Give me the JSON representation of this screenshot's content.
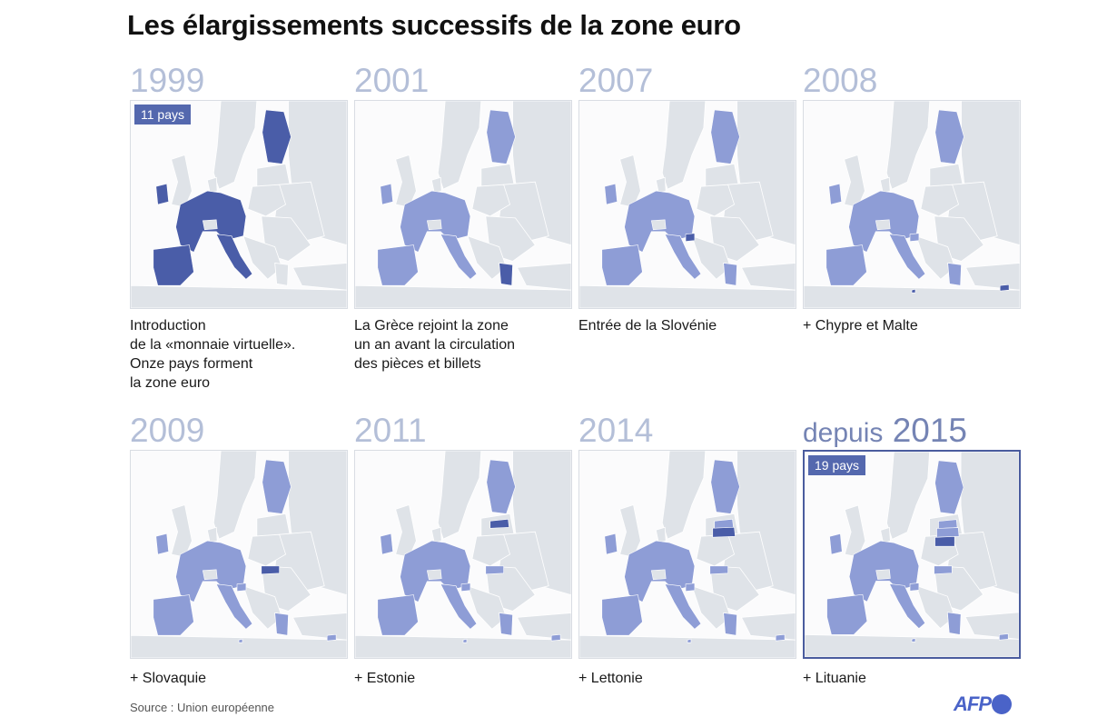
{
  "title": "Les élargissements successifs de la zone euro",
  "source": "Source : Union européenne",
  "logo_text": "AFP",
  "colors": {
    "base": "#dfe3e8",
    "sea": "#fbfbfc",
    "member": "#8e9dd6",
    "new_member": "#4a5da8",
    "year_light": "#b4bfd8",
    "year_dark": "#7584b4",
    "badge": "#5468ae"
  },
  "panels": [
    {
      "year": "1999",
      "badge": "11 pays",
      "caption": "Introduction\nde la «monnaie virtuelle».\nOnze pays forment\nla zone euro"
    },
    {
      "year": "2001",
      "caption": "La Grèce rejoint la zone\nun an avant la circulation\ndes pièces et billets"
    },
    {
      "year": "2007",
      "caption": "Entrée de la Slovénie"
    },
    {
      "year": "2008",
      "caption": "+ Chypre et Malte"
    },
    {
      "year": "2009",
      "caption": "+ Slovaquie"
    },
    {
      "year": "2011",
      "caption": "+ Estonie"
    },
    {
      "year": "2014",
      "caption": "+ Lettonie"
    },
    {
      "prefix": "depuis",
      "year": "2015",
      "badge": "19 pays",
      "caption": "+ Lituanie"
    }
  ]
}
